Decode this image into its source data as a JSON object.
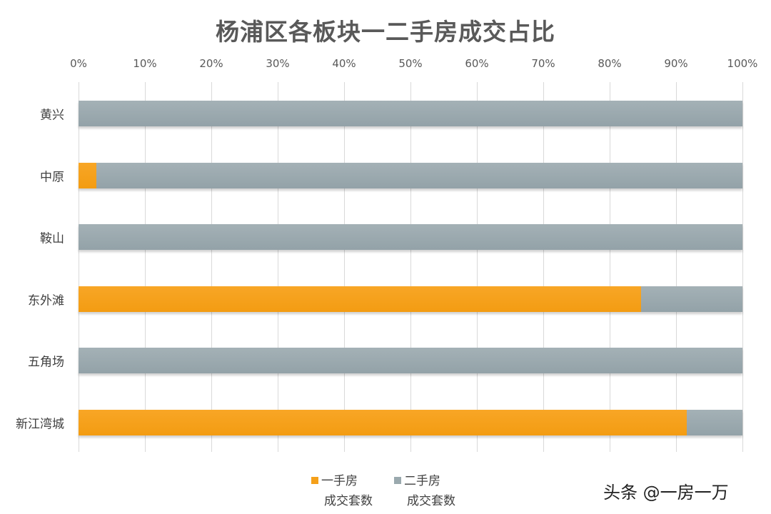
{
  "chart_data": {
    "type": "bar",
    "orientation": "horizontal",
    "stacked": "percent",
    "title": "杨浦区各板块一二手房成交占比",
    "categories": [
      "黄兴",
      "中原",
      "鞍山",
      "东外滩",
      "五角场",
      "新江湾城"
    ],
    "series": [
      {
        "name": "一手房成交套数",
        "color": "#f5a01a",
        "values": [
          0,
          2.7,
          0,
          84.7,
          0,
          91.6
        ]
      },
      {
        "name": "二手房成交套数",
        "color": "#9aa9ae",
        "values": [
          100,
          97.3,
          100,
          15.3,
          100,
          8.4
        ]
      }
    ],
    "x_ticks": [
      "0%",
      "10%",
      "20%",
      "30%",
      "40%",
      "50%",
      "60%",
      "70%",
      "80%",
      "90%",
      "100%"
    ],
    "xlim": [
      0,
      100
    ],
    "xlabel": "",
    "ylabel": "",
    "grid": "vertical",
    "legend_position": "bottom",
    "x_axis_position": "top"
  },
  "legend": [
    {
      "line1": "一手房",
      "line2": "成交套数",
      "color": "#f5a01a"
    },
    {
      "line1": "二手房",
      "line2": "成交套数",
      "color": "#9aa9ae"
    }
  ],
  "watermark": "头条 @一房一万"
}
